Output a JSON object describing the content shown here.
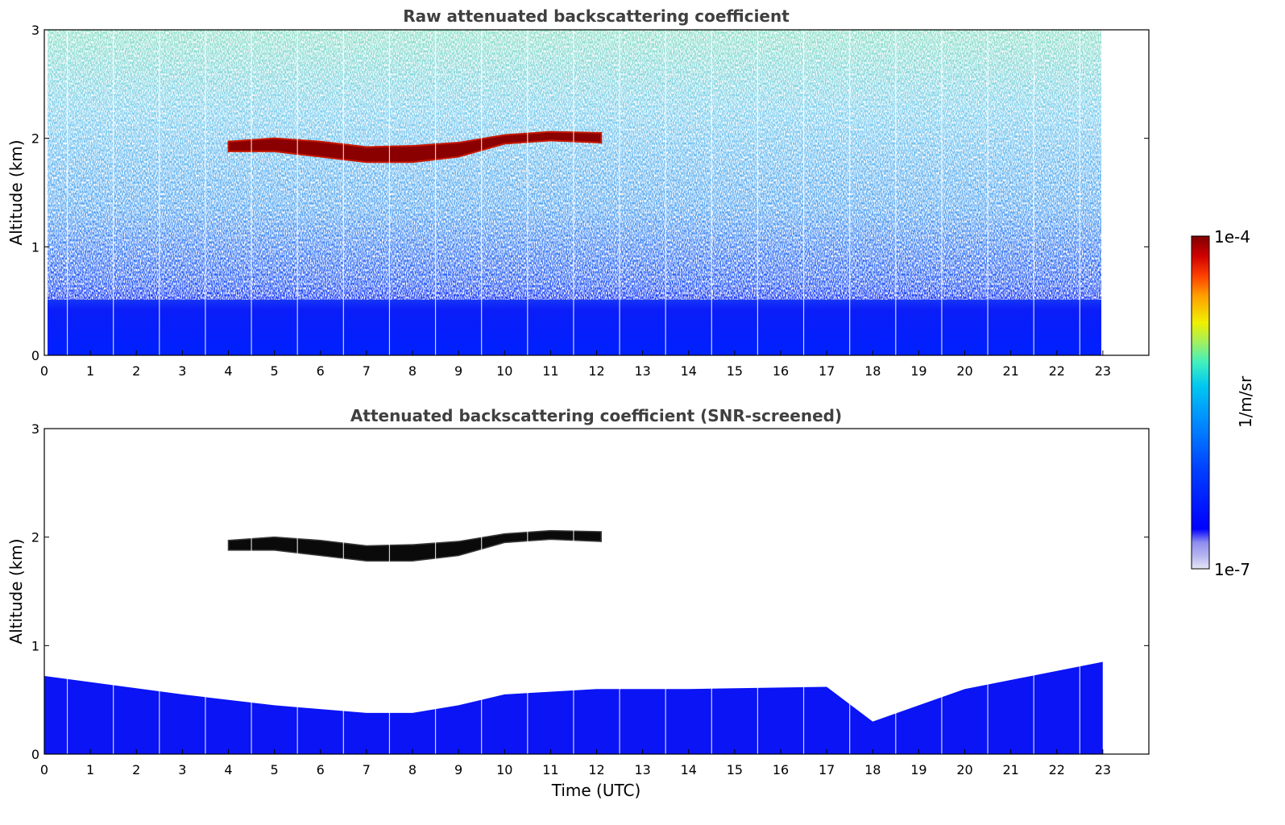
{
  "chart_data": [
    {
      "type": "heatmap",
      "title": "Raw attenuated backscattering coefficient",
      "xlabel": "",
      "ylabel": "Altitude (km)",
      "xlim": [
        0,
        24
      ],
      "ylim": [
        0,
        3
      ],
      "xticks": [
        "0",
        "1",
        "2",
        "3",
        "4",
        "5",
        "6",
        "7",
        "8",
        "9",
        "10",
        "11",
        "12",
        "13",
        "14",
        "15",
        "16",
        "17",
        "18",
        "19",
        "20",
        "21",
        "22",
        "23"
      ],
      "yticks": [
        "0",
        "1",
        "2",
        "3"
      ],
      "data_end_time": 23,
      "features": {
        "boundary_layer_top_km": 0.5,
        "cloud_layer": [
          {
            "t": 4.0,
            "base": 1.88,
            "top": 1.97
          },
          {
            "t": 5.0,
            "base": 1.88,
            "top": 2.0
          },
          {
            "t": 6.0,
            "base": 1.83,
            "top": 1.97
          },
          {
            "t": 7.0,
            "base": 1.78,
            "top": 1.92
          },
          {
            "t": 8.0,
            "base": 1.78,
            "top": 1.93
          },
          {
            "t": 9.0,
            "base": 1.83,
            "top": 1.96
          },
          {
            "t": 10.0,
            "base": 1.95,
            "top": 2.03
          },
          {
            "t": 11.0,
            "base": 1.98,
            "top": 2.06
          },
          {
            "t": 12.1,
            "base": 1.96,
            "top": 2.05
          }
        ]
      }
    },
    {
      "type": "heatmap",
      "title": "Attenuated backscattering coefficient (SNR-screened)",
      "xlabel": "Time (UTC)",
      "ylabel": "Altitude (km)",
      "xlim": [
        0,
        24
      ],
      "ylim": [
        0,
        3
      ],
      "xticks": [
        "0",
        "1",
        "2",
        "3",
        "4",
        "5",
        "6",
        "7",
        "8",
        "9",
        "10",
        "11",
        "12",
        "13",
        "14",
        "15",
        "16",
        "17",
        "18",
        "19",
        "20",
        "21",
        "22",
        "23"
      ],
      "yticks": [
        "0",
        "1",
        "2",
        "3"
      ],
      "data_end_time": 23,
      "features": {
        "boundary_layer_top": [
          {
            "t": 0,
            "km": 0.72
          },
          {
            "t": 3,
            "km": 0.55
          },
          {
            "t": 5,
            "km": 0.45
          },
          {
            "t": 7,
            "km": 0.38
          },
          {
            "t": 8,
            "km": 0.38
          },
          {
            "t": 9,
            "km": 0.45
          },
          {
            "t": 10,
            "km": 0.55
          },
          {
            "t": 12,
            "km": 0.6
          },
          {
            "t": 14,
            "km": 0.6
          },
          {
            "t": 17,
            "km": 0.62
          },
          {
            "t": 18,
            "km": 0.3
          },
          {
            "t": 20,
            "km": 0.6
          },
          {
            "t": 23,
            "km": 0.85
          }
        ]
      }
    }
  ],
  "colorbar": {
    "max_label": "1e-4",
    "min_label": "1e-7",
    "unit_label": "1/m/sr",
    "colors": [
      "#e6e6f5",
      "#b4b4f0",
      "#8c8cf0",
      "#0000ff",
      "#0040ff",
      "#0090ff",
      "#00c8f0",
      "#40f0c0",
      "#a0f060",
      "#f0f000",
      "#ffa000",
      "#ff4000",
      "#d00000",
      "#800000"
    ]
  }
}
